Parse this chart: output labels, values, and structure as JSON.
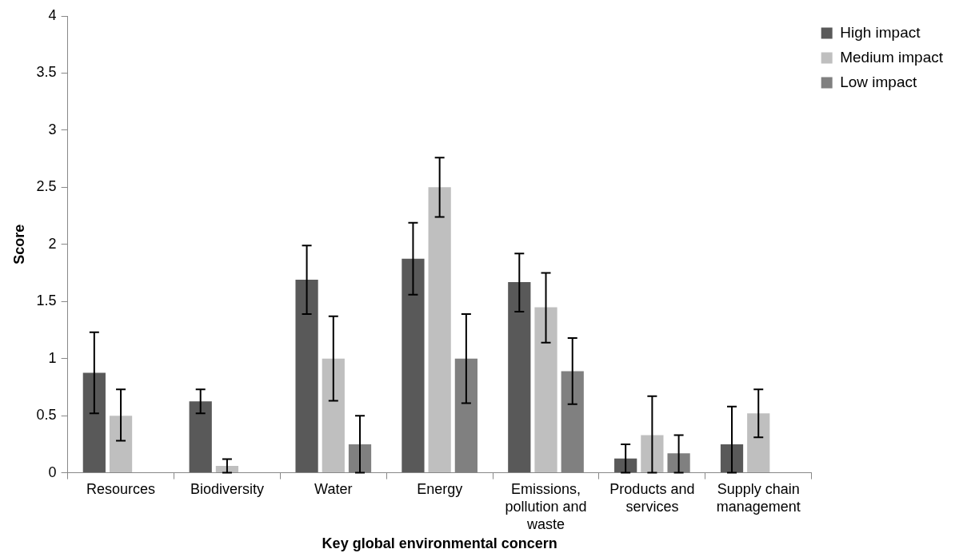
{
  "chart_data": {
    "type": "bar",
    "xlabel": "Key global environmental concern",
    "ylabel": "Score",
    "categories": [
      "Resources",
      "Biodiversity",
      "Water",
      "Energy",
      "Emissions, pollution and waste",
      "Products and services",
      "Supply chain management"
    ],
    "series": [
      {
        "name": "High impact",
        "color": "#595959",
        "values": [
          0.875,
          0.625,
          1.69,
          1.875,
          1.67,
          0.125,
          0.25
        ],
        "errors": [
          [
            0.52,
            1.23
          ],
          [
            0.52,
            0.73
          ],
          [
            1.39,
            1.99
          ],
          [
            1.56,
            2.19
          ],
          [
            1.41,
            1.92
          ],
          [
            0,
            0.25
          ],
          [
            0,
            0.58
          ]
        ]
      },
      {
        "name": "Medium impact",
        "color": "#bfbfbf",
        "values": [
          0.5,
          0.06,
          1.0,
          2.5,
          1.45,
          0.33,
          0.52
        ],
        "errors": [
          [
            0.28,
            0.73
          ],
          [
            0,
            0.12
          ],
          [
            0.63,
            1.37
          ],
          [
            2.24,
            2.76
          ],
          [
            1.14,
            1.75
          ],
          [
            0,
            0.67
          ],
          [
            0.31,
            0.73
          ]
        ]
      },
      {
        "name": "Low impact",
        "color": "#808080",
        "values": [
          0,
          0,
          0.25,
          1.0,
          0.89,
          0.17,
          0
        ],
        "errors": [
          null,
          null,
          [
            0,
            0.5
          ],
          [
            0.61,
            1.39
          ],
          [
            0.6,
            1.18
          ],
          [
            0,
            0.33
          ],
          null
        ]
      }
    ],
    "ylim": [
      0,
      4
    ],
    "yticks": [
      0,
      0.5,
      1,
      1.5,
      2,
      2.5,
      3,
      3.5,
      4
    ],
    "grid": false,
    "legend": "top right"
  }
}
